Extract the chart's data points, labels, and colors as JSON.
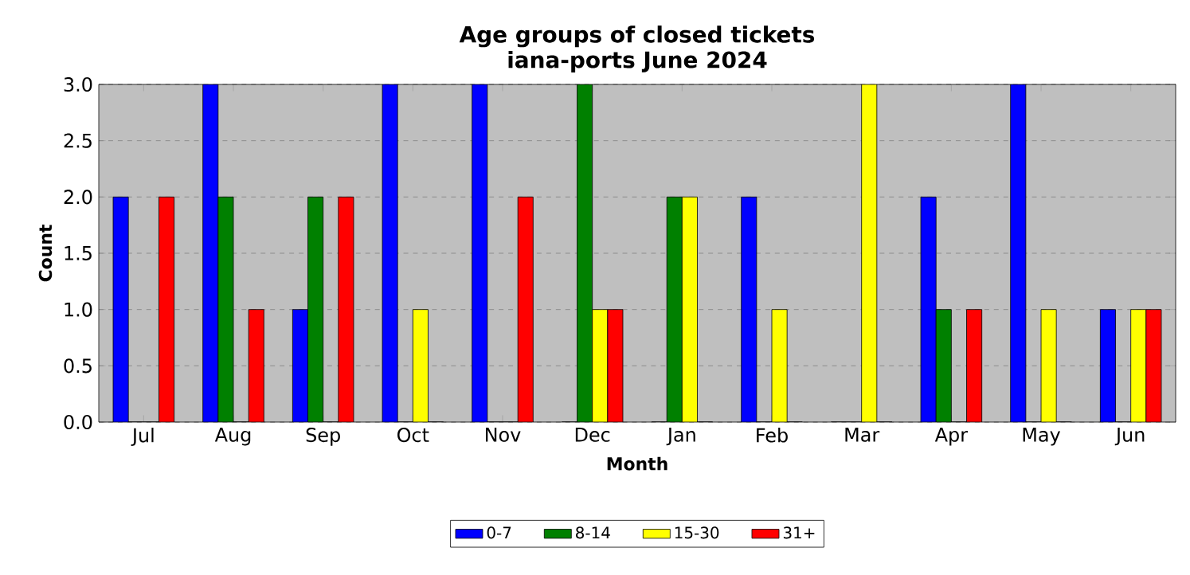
{
  "chart_data": {
    "type": "bar",
    "title": "Age groups of closed tickets",
    "subtitle": "iana-ports June 2024",
    "xlabel": "Month",
    "ylabel": "Count",
    "categories": [
      "Jul",
      "Aug",
      "Sep",
      "Oct",
      "Nov",
      "Dec",
      "Jan",
      "Feb",
      "Mar",
      "Apr",
      "May",
      "Jun"
    ],
    "series": [
      {
        "name": "0-7",
        "color": "#0000ff",
        "values": [
          2,
          3,
          1,
          3,
          3,
          0,
          0,
          2,
          0,
          2,
          3,
          1
        ]
      },
      {
        "name": "8-14",
        "color": "#008000",
        "values": [
          0,
          2,
          2,
          0,
          0,
          3,
          2,
          0,
          0,
          1,
          0,
          0
        ]
      },
      {
        "name": "15-30",
        "color": "#ffff00",
        "values": [
          0,
          0,
          0,
          1,
          0,
          1,
          2,
          1,
          3,
          0,
          1,
          1
        ]
      },
      {
        "name": "31+",
        "color": "#ff0000",
        "values": [
          2,
          1,
          2,
          0,
          2,
          1,
          0,
          0,
          0,
          1,
          0,
          1
        ]
      }
    ],
    "ylim": [
      0,
      3
    ],
    "yticks": [
      {
        "value": 0,
        "label": "0.0"
      },
      {
        "value": 0.5,
        "label": "0.5"
      },
      {
        "value": 1,
        "label": "1.0"
      },
      {
        "value": 1.5,
        "label": "1.5"
      },
      {
        "value": 2,
        "label": "2.0"
      },
      {
        "value": 2.5,
        "label": "2.5"
      },
      {
        "value": 3,
        "label": "3.0"
      }
    ],
    "grid": "y",
    "legend": "bottom"
  }
}
